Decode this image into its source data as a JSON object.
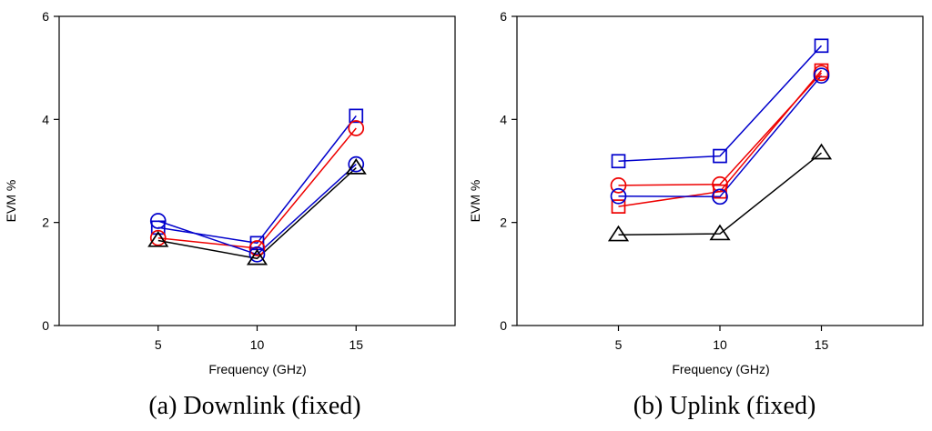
{
  "chart_data": [
    {
      "type": "line",
      "caption": "(a) Downlink (fixed)",
      "xlabel": "Frequency (GHz)",
      "ylabel": "EVM %",
      "x": [
        5,
        10,
        15
      ],
      "x_ticks": [
        "5",
        "10",
        "15"
      ],
      "xlim": [
        0,
        20
      ],
      "ylim": [
        0,
        6
      ],
      "y_ticks": [
        "0",
        "2",
        "4",
        "6"
      ],
      "grid": false,
      "series": [
        {
          "name": "blue-square",
          "color": "#0000cc",
          "marker": "square",
          "values": [
            1.9,
            1.6,
            4.07
          ]
        },
        {
          "name": "red-circle",
          "color": "#ee0000",
          "marker": "circle",
          "values": [
            1.7,
            1.5,
            3.83
          ]
        },
        {
          "name": "blue-circle",
          "color": "#0000cc",
          "marker": "circle",
          "values": [
            2.03,
            1.38,
            3.13
          ]
        },
        {
          "name": "black-triangle",
          "color": "#000000",
          "marker": "triangle",
          "values": [
            1.65,
            1.3,
            3.06
          ]
        }
      ]
    },
    {
      "type": "line",
      "caption": "(b) Uplink (fixed)",
      "xlabel": "Frequency (GHz)",
      "ylabel": "EVM %",
      "x": [
        5,
        10,
        15
      ],
      "x_ticks": [
        "5",
        "10",
        "15"
      ],
      "xlim": [
        0,
        20
      ],
      "ylim": [
        0,
        6
      ],
      "y_ticks": [
        "0",
        "2",
        "4",
        "6"
      ],
      "grid": false,
      "series": [
        {
          "name": "blue-square",
          "color": "#0000cc",
          "marker": "square",
          "values": [
            3.19,
            3.29,
            5.43
          ]
        },
        {
          "name": "red-circle",
          "color": "#ee0000",
          "marker": "circle",
          "values": [
            2.72,
            2.74,
            4.9
          ]
        },
        {
          "name": "red-square",
          "color": "#ee0000",
          "marker": "square",
          "values": [
            2.31,
            2.6,
            4.95
          ]
        },
        {
          "name": "blue-circle",
          "color": "#0000cc",
          "marker": "circle",
          "values": [
            2.51,
            2.5,
            4.85
          ]
        },
        {
          "name": "black-triangle",
          "color": "#000000",
          "marker": "triangle",
          "values": [
            1.76,
            1.78,
            3.35
          ]
        }
      ]
    }
  ]
}
